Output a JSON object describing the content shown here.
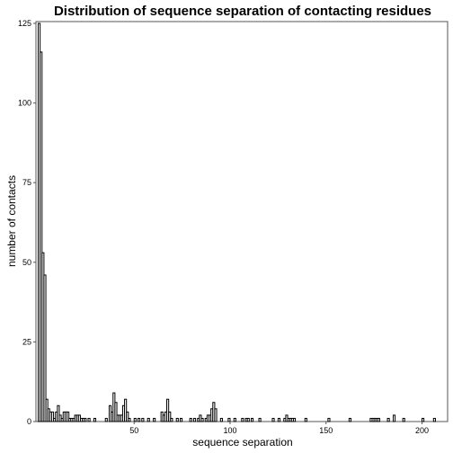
{
  "chart_data": {
    "type": "bar",
    "title": "Distribution of sequence separation of contacting residues",
    "xlabel": "sequence separation",
    "ylabel": "number of contacts",
    "xlim": [
      0,
      210
    ],
    "ylim": [
      0,
      125
    ],
    "x_ticks": [
      50,
      100,
      150,
      200
    ],
    "y_ticks": [
      0,
      25,
      50,
      75,
      100,
      125
    ],
    "grid": false,
    "bars": [
      {
        "x": 1,
        "y": 125
      },
      {
        "x": 2,
        "y": 116
      },
      {
        "x": 3,
        "y": 53
      },
      {
        "x": 4,
        "y": 46
      },
      {
        "x": 5,
        "y": 7
      },
      {
        "x": 6,
        "y": 4
      },
      {
        "x": 7,
        "y": 3
      },
      {
        "x": 8,
        "y": 3
      },
      {
        "x": 9,
        "y": 1
      },
      {
        "x": 10,
        "y": 3
      },
      {
        "x": 11,
        "y": 5
      },
      {
        "x": 12,
        "y": 2
      },
      {
        "x": 13,
        "y": 1
      },
      {
        "x": 14,
        "y": 3
      },
      {
        "x": 15,
        "y": 3
      },
      {
        "x": 16,
        "y": 3
      },
      {
        "x": 17,
        "y": 1
      },
      {
        "x": 18,
        "y": 1
      },
      {
        "x": 19,
        "y": 1
      },
      {
        "x": 20,
        "y": 2
      },
      {
        "x": 21,
        "y": 2
      },
      {
        "x": 22,
        "y": 2
      },
      {
        "x": 23,
        "y": 1
      },
      {
        "x": 24,
        "y": 1
      },
      {
        "x": 25,
        "y": 1
      },
      {
        "x": 27,
        "y": 1
      },
      {
        "x": 30,
        "y": 1
      },
      {
        "x": 36,
        "y": 1
      },
      {
        "x": 38,
        "y": 5
      },
      {
        "x": 39,
        "y": 3
      },
      {
        "x": 40,
        "y": 9
      },
      {
        "x": 41,
        "y": 6
      },
      {
        "x": 42,
        "y": 2
      },
      {
        "x": 43,
        "y": 2
      },
      {
        "x": 44,
        "y": 2
      },
      {
        "x": 45,
        "y": 5
      },
      {
        "x": 46,
        "y": 7
      },
      {
        "x": 47,
        "y": 3
      },
      {
        "x": 48,
        "y": 1
      },
      {
        "x": 51,
        "y": 1
      },
      {
        "x": 53,
        "y": 1
      },
      {
        "x": 55,
        "y": 1
      },
      {
        "x": 58,
        "y": 1
      },
      {
        "x": 61,
        "y": 1
      },
      {
        "x": 65,
        "y": 3
      },
      {
        "x": 66,
        "y": 2
      },
      {
        "x": 67,
        "y": 3
      },
      {
        "x": 68,
        "y": 7
      },
      {
        "x": 69,
        "y": 3
      },
      {
        "x": 70,
        "y": 1
      },
      {
        "x": 73,
        "y": 1
      },
      {
        "x": 75,
        "y": 1
      },
      {
        "x": 80,
        "y": 1
      },
      {
        "x": 82,
        "y": 1
      },
      {
        "x": 84,
        "y": 1
      },
      {
        "x": 85,
        "y": 2
      },
      {
        "x": 86,
        "y": 1
      },
      {
        "x": 88,
        "y": 1
      },
      {
        "x": 89,
        "y": 2
      },
      {
        "x": 90,
        "y": 2
      },
      {
        "x": 91,
        "y": 4
      },
      {
        "x": 92,
        "y": 6
      },
      {
        "x": 93,
        "y": 4
      },
      {
        "x": 96,
        "y": 1
      },
      {
        "x": 100,
        "y": 1
      },
      {
        "x": 103,
        "y": 1
      },
      {
        "x": 107,
        "y": 1
      },
      {
        "x": 109,
        "y": 1
      },
      {
        "x": 110,
        "y": 1
      },
      {
        "x": 112,
        "y": 1
      },
      {
        "x": 116,
        "y": 1
      },
      {
        "x": 123,
        "y": 1
      },
      {
        "x": 126,
        "y": 1
      },
      {
        "x": 129,
        "y": 1
      },
      {
        "x": 130,
        "y": 2
      },
      {
        "x": 131,
        "y": 1
      },
      {
        "x": 132,
        "y": 1
      },
      {
        "x": 133,
        "y": 1
      },
      {
        "x": 134,
        "y": 1
      },
      {
        "x": 140,
        "y": 1
      },
      {
        "x": 152,
        "y": 1
      },
      {
        "x": 163,
        "y": 1
      },
      {
        "x": 174,
        "y": 1
      },
      {
        "x": 175,
        "y": 1
      },
      {
        "x": 176,
        "y": 1
      },
      {
        "x": 177,
        "y": 1
      },
      {
        "x": 178,
        "y": 1
      },
      {
        "x": 183,
        "y": 1
      },
      {
        "x": 186,
        "y": 2
      },
      {
        "x": 191,
        "y": 1
      },
      {
        "x": 201,
        "y": 1
      },
      {
        "x": 207,
        "y": 1
      }
    ]
  }
}
